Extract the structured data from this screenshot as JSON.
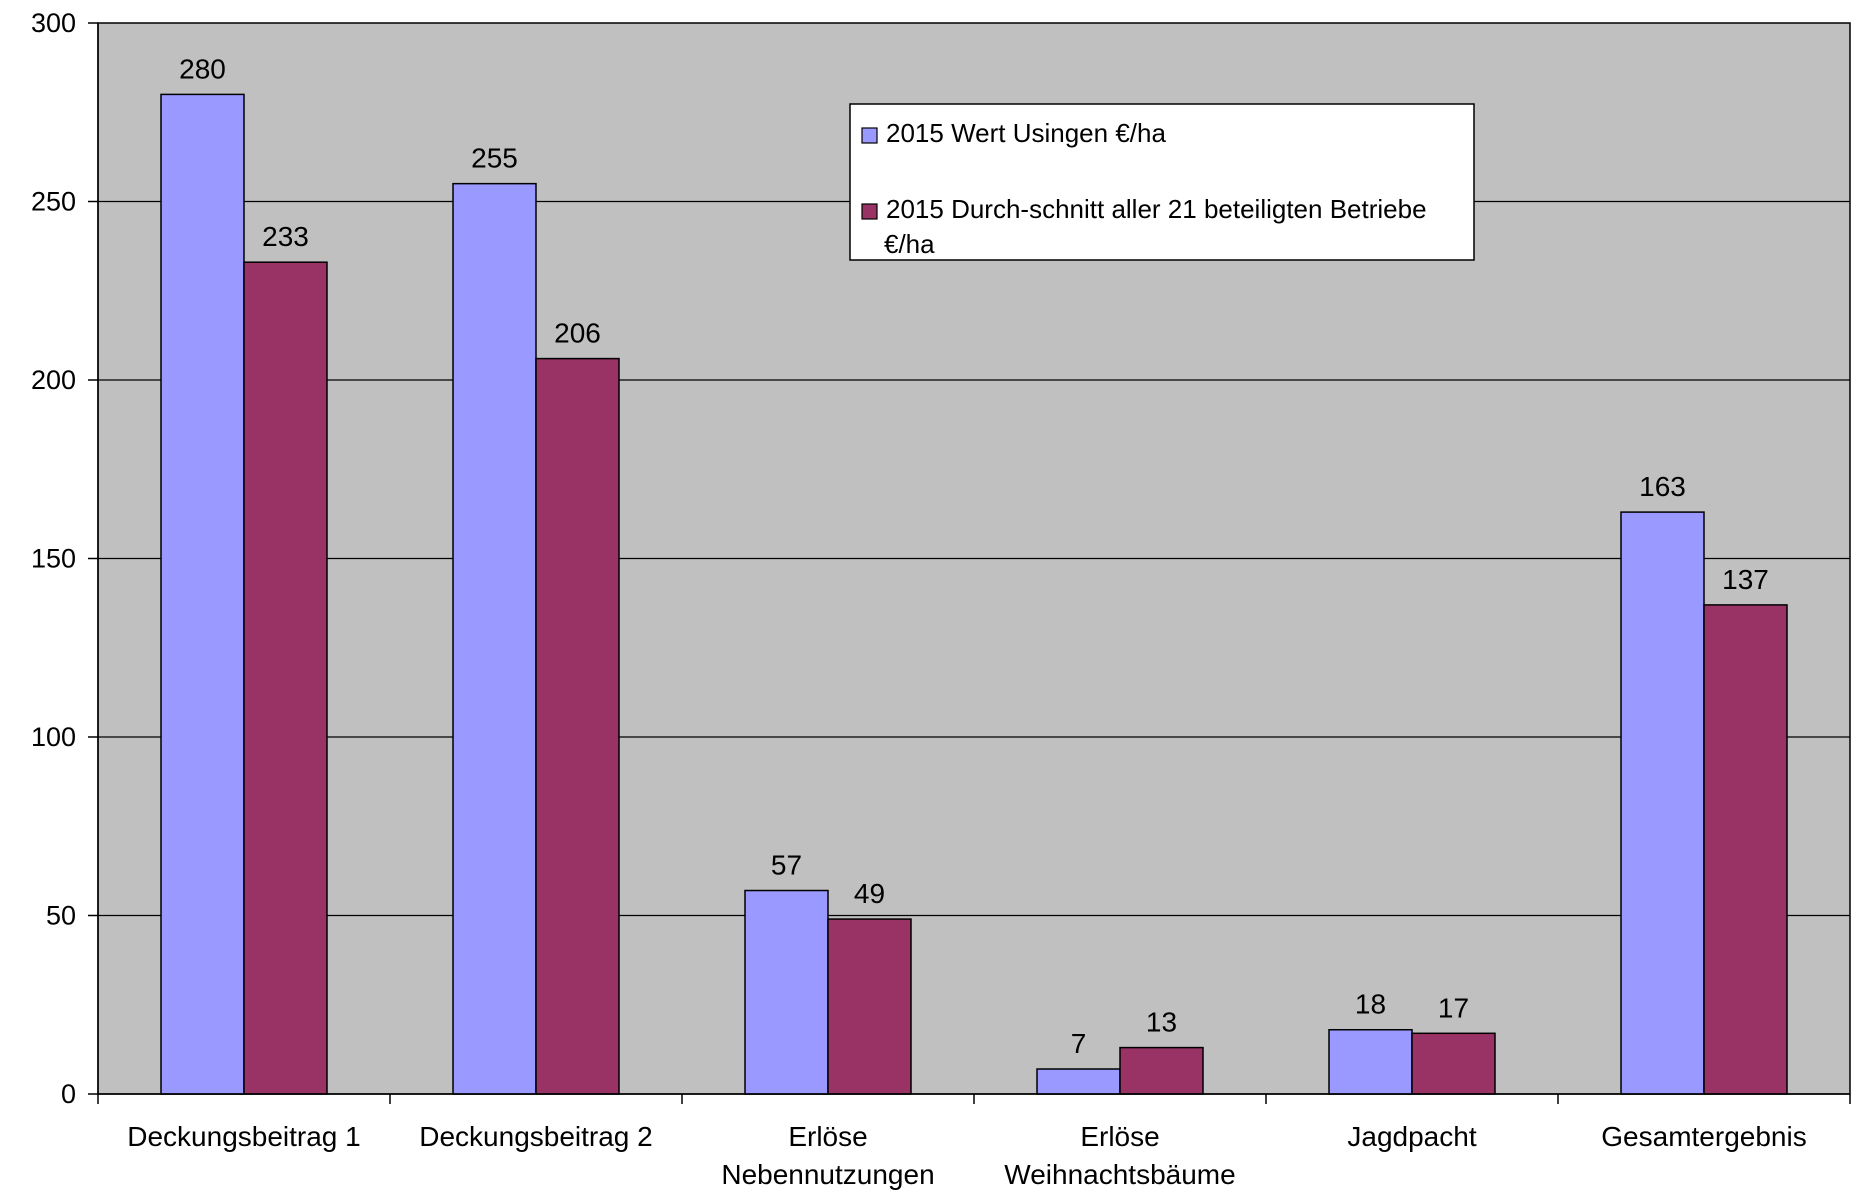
{
  "chart_data": {
    "type": "bar",
    "title": "",
    "xlabel": "",
    "ylabel": "",
    "ylim": [
      0,
      300
    ],
    "yticks": [
      0,
      50,
      100,
      150,
      200,
      250,
      300
    ],
    "grid": true,
    "legend_position": "top-center",
    "plot_background": "#C0C0C0",
    "categories": [
      [
        "Deckungsbeitrag 1"
      ],
      [
        "Deckungsbeitrag 2"
      ],
      [
        "Erlöse",
        "Nebennutzungen"
      ],
      [
        "Erlöse",
        "Weihnachtsbäume"
      ],
      [
        "Jagdpacht"
      ],
      [
        "Gesamtergebnis"
      ]
    ],
    "series": [
      {
        "name": "2015   Wert Usingen €/ha",
        "legend_lines": [
          "2015   Wert Usingen €/ha"
        ],
        "color": "#9999FF",
        "values": [
          280,
          255,
          57,
          7,
          18,
          163
        ]
      },
      {
        "name": "2015 Durch-schnitt aller 21 beteiligten Betriebe €/ha",
        "legend_lines": [
          "2015 Durch-schnitt aller 21 beteiligten Betriebe",
          "€/ha"
        ],
        "color": "#993366",
        "values": [
          233,
          206,
          49,
          13,
          17,
          137
        ]
      }
    ]
  }
}
